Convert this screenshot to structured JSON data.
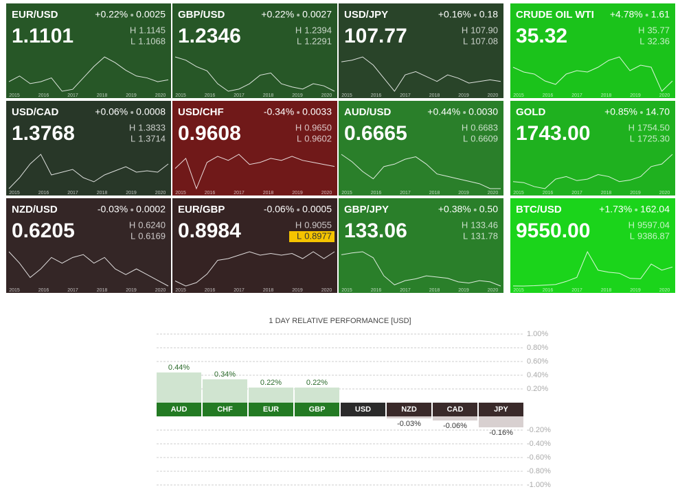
{
  "labels": {
    "high": "H",
    "low": "L"
  },
  "years": [
    "2015",
    "2016",
    "2017",
    "2018",
    "2019",
    "2020"
  ],
  "tiles": [
    {
      "pair": "EUR/USD",
      "change": "+0.22%",
      "delta": "0.0025",
      "price": "1.1101",
      "high": "1.1145",
      "low": "1.1068",
      "color": "#2b5f2b",
      "spark": [
        1.1,
        1.13,
        1.09,
        1.1,
        1.12,
        1.05,
        1.06,
        1.12,
        1.18,
        1.23,
        1.2,
        1.16,
        1.13,
        1.12,
        1.1,
        1.11
      ]
    },
    {
      "pair": "GBP/USD",
      "change": "+0.22%",
      "delta": "0.0027",
      "price": "1.2346",
      "high": "1.2394",
      "low": "1.2291",
      "color": "#2b5f2b",
      "spark": [
        1.55,
        1.52,
        1.46,
        1.42,
        1.3,
        1.23,
        1.25,
        1.3,
        1.38,
        1.4,
        1.3,
        1.27,
        1.25,
        1.3,
        1.28,
        1.23
      ]
    },
    {
      "pair": "USD/JPY",
      "change": "+0.16%",
      "delta": "0.18",
      "price": "107.77",
      "high": "107.90",
      "low": "107.08",
      "color": "#2d4a2d",
      "spark": [
        120,
        121,
        123,
        118,
        110,
        102,
        112,
        114,
        111,
        108,
        112,
        110,
        107,
        108,
        109,
        108
      ]
    },
    {
      "pair": "CRUDE OIL WTI",
      "change": "+4.78%",
      "delta": "1.61",
      "price": "35.32",
      "high": "35.77",
      "low": "32.36",
      "color": "#1ed41e",
      "spark": [
        55,
        48,
        45,
        35,
        30,
        45,
        50,
        48,
        55,
        65,
        70,
        50,
        58,
        55,
        20,
        35
      ]
    },
    {
      "pair": "USD/CAD",
      "change": "+0.06%",
      "delta": "0.0008",
      "price": "1.3768",
      "high": "1.3833",
      "low": "1.3714",
      "color": "#2c3c2c",
      "spark": [
        1.2,
        1.28,
        1.38,
        1.45,
        1.3,
        1.32,
        1.34,
        1.28,
        1.25,
        1.3,
        1.33,
        1.36,
        1.32,
        1.33,
        1.32,
        1.38
      ]
    },
    {
      "pair": "USD/CHF",
      "change": "-0.34%",
      "delta": "0.0033",
      "price": "0.9608",
      "high": "0.9650",
      "low": "0.9602",
      "color": "#7a1c1c",
      "spark": [
        0.95,
        1.0,
        0.85,
        0.98,
        1.01,
        0.99,
        1.02,
        0.97,
        0.98,
        1.0,
        0.99,
        1.01,
        0.99,
        0.98,
        0.97,
        0.96
      ]
    },
    {
      "pair": "AUD/USD",
      "change": "+0.44%",
      "delta": "0.0030",
      "price": "0.6665",
      "high": "0.6683",
      "low": "0.6609",
      "color": "#2e8a2e",
      "spark": [
        0.8,
        0.77,
        0.73,
        0.7,
        0.75,
        0.76,
        0.78,
        0.79,
        0.76,
        0.72,
        0.71,
        0.7,
        0.69,
        0.68,
        0.66,
        0.66
      ]
    },
    {
      "pair": "GOLD",
      "change": "+0.85%",
      "delta": "14.70",
      "price": "1743.00",
      "high": "1754.50",
      "low": "1725.30",
      "color": "#22c022",
      "spark": [
        1200,
        1180,
        1100,
        1060,
        1250,
        1300,
        1220,
        1250,
        1340,
        1300,
        1200,
        1230,
        1300,
        1500,
        1550,
        1743
      ]
    },
    {
      "pair": "NZD/USD",
      "change": "-0.03%",
      "delta": "0.0002",
      "price": "0.6205",
      "high": "0.6240",
      "low": "0.6169",
      "color": "#392a2a",
      "spark": [
        0.74,
        0.7,
        0.65,
        0.68,
        0.72,
        0.7,
        0.72,
        0.73,
        0.7,
        0.72,
        0.68,
        0.66,
        0.68,
        0.66,
        0.64,
        0.62
      ]
    },
    {
      "pair": "EUR/GBP",
      "change": "-0.06%",
      "delta": "0.0005",
      "price": "0.8984",
      "high": "0.9055",
      "low": "0.8977",
      "color": "#3a2626",
      "highlight": "low",
      "spark": [
        0.73,
        0.7,
        0.72,
        0.77,
        0.85,
        0.86,
        0.88,
        0.9,
        0.88,
        0.89,
        0.88,
        0.89,
        0.86,
        0.9,
        0.86,
        0.9
      ]
    },
    {
      "pair": "GBP/JPY",
      "change": "+0.38%",
      "delta": "0.50",
      "price": "133.06",
      "high": "133.46",
      "low": "131.78",
      "color": "#2e8a2e",
      "spark": [
        185,
        188,
        190,
        180,
        150,
        135,
        142,
        145,
        150,
        148,
        146,
        140,
        138,
        142,
        140,
        133
      ]
    },
    {
      "pair": "BTC/USD",
      "change": "+1.73%",
      "delta": "162.04",
      "price": "9550.00",
      "high": "9597.04",
      "low": "9386.87",
      "color": "#1ee61e",
      "spark": [
        300,
        250,
        400,
        700,
        1000,
        2500,
        4500,
        17000,
        8000,
        7000,
        6500,
        4000,
        3800,
        11000,
        8000,
        9550
      ]
    }
  ],
  "chart_data": {
    "type": "bar",
    "title": "1 DAY RELATIVE PERFORMANCE  [USD]",
    "categories": [
      "AUD",
      "CHF",
      "EUR",
      "GBP",
      "USD",
      "NZD",
      "CAD",
      "JPY"
    ],
    "values": [
      0.44,
      0.34,
      0.22,
      0.22,
      0,
      -0.03,
      -0.06,
      -0.16
    ],
    "value_labels": [
      "0.44%",
      "0.34%",
      "0.22%",
      "0.22%",
      null,
      "-0.03%",
      "-0.06%",
      "-0.16%"
    ],
    "label_colors": [
      "#237a23",
      "#237a23",
      "#237a23",
      "#237a23",
      "#2b2b2b",
      "#3a2a2a",
      "#3a2a2a",
      "#3a2a2a"
    ],
    "positive_color": "#d0e4d0",
    "negative_color": "#d8d0d0",
    "ylim": [
      -1,
      1
    ],
    "yticks": [
      {
        "value": 1,
        "label": "1.00%"
      },
      {
        "value": 0.8,
        "label": "0.80%"
      },
      {
        "value": 0.6,
        "label": "0.60%"
      },
      {
        "value": 0.4,
        "label": "0.40%"
      },
      {
        "value": 0.2,
        "label": "0.20%"
      },
      {
        "value": -0.2,
        "label": "-0.20%"
      },
      {
        "value": -0.4,
        "label": "-0.40%"
      },
      {
        "value": -0.6,
        "label": "-0.60%"
      },
      {
        "value": -0.8,
        "label": "-0.80%"
      },
      {
        "value": -1,
        "label": "-1.00%"
      }
    ],
    "grid": true
  }
}
